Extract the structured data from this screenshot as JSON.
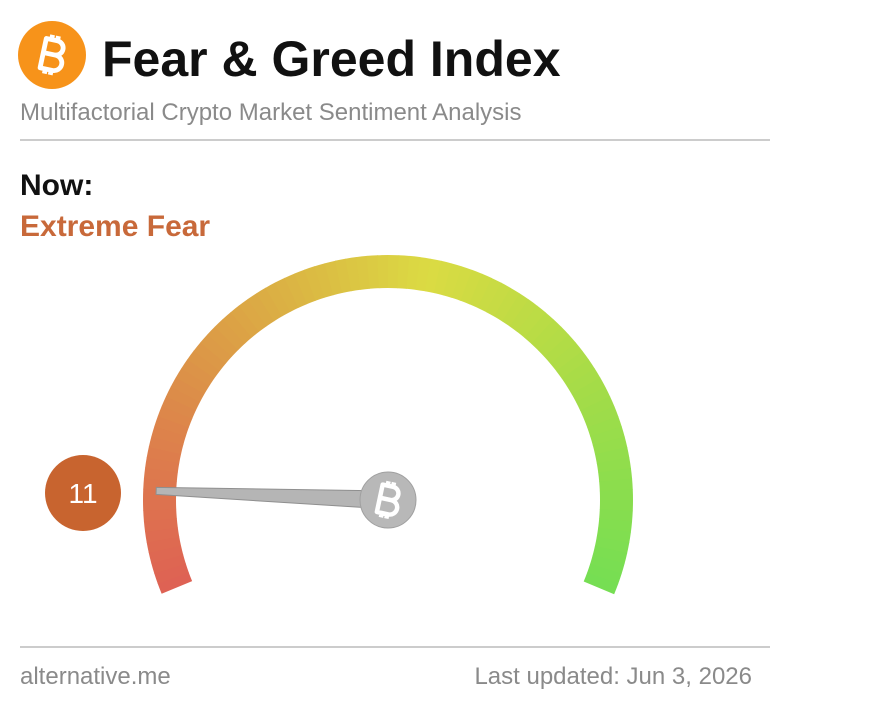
{
  "chart_data": {
    "type": "gauge",
    "title": "Fear & Greed Index",
    "subtitle": "Multifactorial Crypto Market Sentiment Analysis",
    "now_label": "Now:",
    "classification": "Extreme Fear",
    "value": 11,
    "ylim": [
      0,
      100
    ],
    "source": "alternative.me",
    "updated": "Last updated: Jun 3, 2026"
  }
}
